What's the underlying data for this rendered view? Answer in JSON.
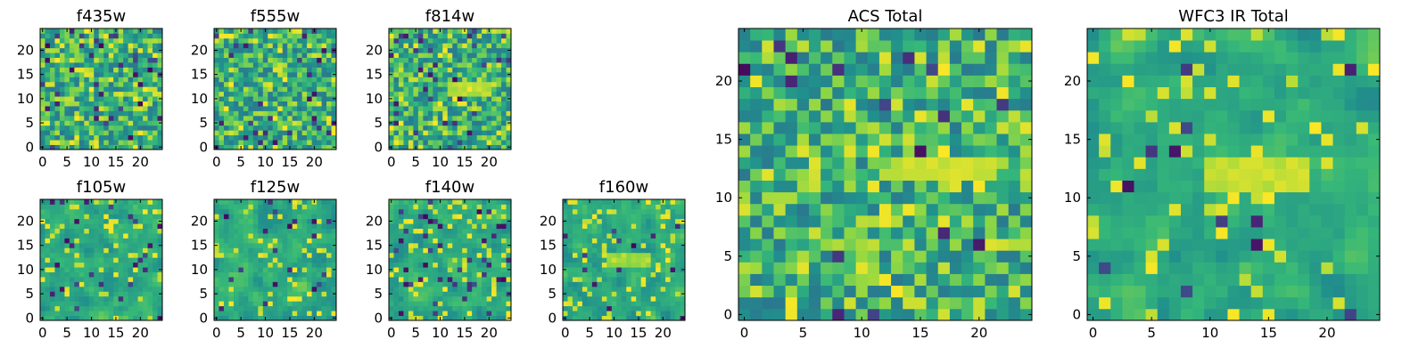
{
  "chart_data": [
    {
      "type": "heatmap",
      "title": "f435w",
      "x_range": [
        -0.5,
        24.5
      ],
      "y_range": [
        -0.5,
        24.5
      ],
      "xticks": [
        0,
        5,
        10,
        15,
        20
      ],
      "yticks": [
        0,
        5,
        10,
        15,
        20
      ],
      "grid": false,
      "legend": "none",
      "colormap": "viridis",
      "grid_size": 25,
      "seed": 11,
      "smooth": 0,
      "dark_fraction": 0.06,
      "bright_fraction": 0.1
    },
    {
      "type": "heatmap",
      "title": "f555w",
      "x_range": [
        -0.5,
        24.5
      ],
      "y_range": [
        -0.5,
        24.5
      ],
      "xticks": [
        0,
        5,
        10,
        15,
        20
      ],
      "yticks": [
        0,
        5,
        10,
        15,
        20
      ],
      "grid": false,
      "legend": "none",
      "colormap": "viridis",
      "grid_size": 25,
      "seed": 23,
      "smooth": 0,
      "dark_fraction": 0.04,
      "bright_fraction": 0.08
    },
    {
      "type": "heatmap",
      "title": "f814w",
      "x_range": [
        -0.5,
        24.5
      ],
      "y_range": [
        -0.5,
        24.5
      ],
      "xticks": [
        0,
        5,
        10,
        15,
        20
      ],
      "yticks": [
        0,
        5,
        10,
        15,
        20
      ],
      "grid": false,
      "legend": "none",
      "colormap": "viridis",
      "grid_size": 25,
      "seed": 37,
      "smooth": 0,
      "dark_fraction": 0.05,
      "bright_fraction": 0.08,
      "feature": {
        "x": [
          12,
          20
        ],
        "y": [
          11,
          13
        ],
        "level": 0.95
      }
    },
    {
      "type": "heatmap",
      "title": "f105w",
      "x_range": [
        -0.5,
        24.5
      ],
      "y_range": [
        -0.5,
        24.5
      ],
      "xticks": [
        0,
        5,
        10,
        15,
        20
      ],
      "yticks": [
        0,
        5,
        10,
        15,
        20
      ],
      "grid": false,
      "legend": "none",
      "colormap": "viridis",
      "grid_size": 25,
      "seed": 41,
      "smooth": 1,
      "dark_fraction": 0.04,
      "bright_fraction": 0.1
    },
    {
      "type": "heatmap",
      "title": "f125w",
      "x_range": [
        -0.5,
        24.5
      ],
      "y_range": [
        -0.5,
        24.5
      ],
      "xticks": [
        0,
        5,
        10,
        15,
        20
      ],
      "yticks": [
        0,
        5,
        10,
        15,
        20
      ],
      "grid": false,
      "legend": "none",
      "colormap": "viridis",
      "grid_size": 25,
      "seed": 53,
      "smooth": 1,
      "dark_fraction": 0.04,
      "bright_fraction": 0.1
    },
    {
      "type": "heatmap",
      "title": "f140w",
      "x_range": [
        -0.5,
        24.5
      ],
      "y_range": [
        -0.5,
        24.5
      ],
      "xticks": [
        0,
        5,
        10,
        15,
        20
      ],
      "yticks": [
        0,
        5,
        10,
        15,
        20
      ],
      "grid": false,
      "legend": "none",
      "colormap": "viridis",
      "grid_size": 25,
      "seed": 67,
      "smooth": 1,
      "dark_fraction": 0.05,
      "bright_fraction": 0.1
    },
    {
      "type": "heatmap",
      "title": "f160w",
      "x_range": [
        -0.5,
        24.5
      ],
      "y_range": [
        -0.5,
        24.5
      ],
      "xticks": [
        0,
        5,
        10,
        15,
        20
      ],
      "yticks": [
        0,
        5,
        10,
        15,
        20
      ],
      "grid": false,
      "legend": "none",
      "colormap": "viridis",
      "grid_size": 25,
      "seed": 79,
      "smooth": 1,
      "dark_fraction": 0.03,
      "bright_fraction": 0.1,
      "feature": {
        "x": [
          9,
          17
        ],
        "y": [
          11,
          13
        ],
        "level": 0.92
      }
    },
    {
      "type": "heatmap",
      "title": "ACS Total",
      "x_range": [
        -0.5,
        24.5
      ],
      "y_range": [
        -0.5,
        24.5
      ],
      "xticks": [
        0,
        5,
        10,
        15,
        20
      ],
      "yticks": [
        0,
        5,
        10,
        15,
        20
      ],
      "grid": false,
      "legend": "none",
      "colormap": "viridis",
      "grid_size": 25,
      "seed": 97,
      "smooth": 0,
      "dark_fraction": 0.03,
      "bright_fraction": 0.12,
      "feature": {
        "x": [
          13,
          21
        ],
        "y": [
          12,
          13
        ],
        "level": 0.97
      }
    },
    {
      "type": "heatmap",
      "title": "WFC3 IR Total",
      "x_range": [
        -0.5,
        24.5
      ],
      "y_range": [
        -0.5,
        24.5
      ],
      "xticks": [
        0,
        5,
        10,
        15,
        20
      ],
      "yticks": [
        0,
        5,
        10,
        15,
        20
      ],
      "grid": false,
      "legend": "none",
      "colormap": "viridis",
      "grid_size": 25,
      "seed": 113,
      "smooth": 1,
      "dark_fraction": 0.03,
      "bright_fraction": 0.1,
      "feature": {
        "x": [
          10,
          18
        ],
        "y": [
          11,
          13
        ],
        "level": 0.97
      }
    }
  ]
}
